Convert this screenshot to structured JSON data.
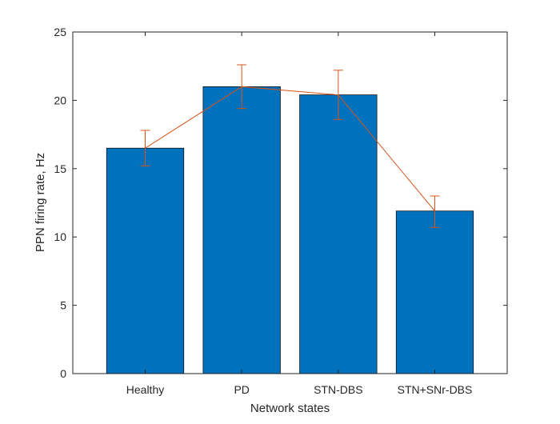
{
  "chart_data": {
    "type": "bar",
    "categories": [
      "Healthy",
      "PD",
      "STN-DBS",
      "STN+SNr-DBS"
    ],
    "values": [
      16.5,
      21.0,
      20.4,
      11.9
    ],
    "error_bars": [
      {
        "low": 15.2,
        "high": 17.8
      },
      {
        "low": 19.4,
        "high": 22.6
      },
      {
        "low": 18.6,
        "high": 22.2
      },
      {
        "low": 10.7,
        "high": 13.0
      }
    ],
    "overlay_line": {
      "type": "line",
      "values": [
        16.5,
        21.0,
        20.4,
        11.9
      ]
    },
    "xlabel": "Network states",
    "ylabel": "PPN firing rate, Hz",
    "ylim": [
      0,
      25
    ],
    "yticks": [
      "0",
      "5",
      "10",
      "15",
      "20",
      "25"
    ],
    "grid": false,
    "colors": {
      "bar": "#0072BD",
      "line": "#D95319",
      "axis": "#262626"
    }
  }
}
